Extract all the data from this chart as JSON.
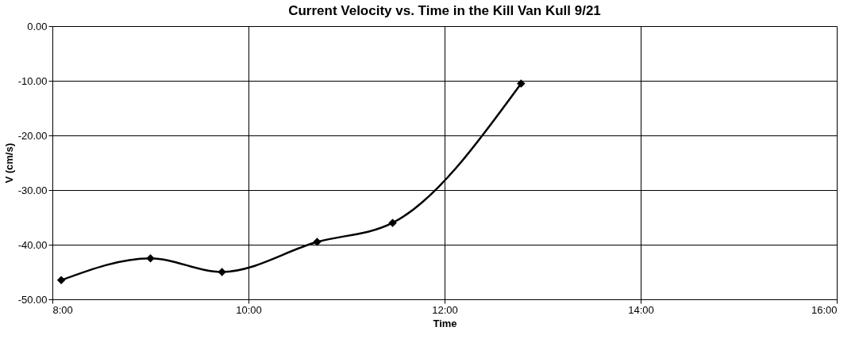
{
  "chart_data": {
    "type": "line",
    "title": "Current Velocity  vs. Time in the Kill Van Kull 9/21",
    "xlabel": "Time",
    "ylabel": "V (cm/s)",
    "x": [
      8.09,
      9.0,
      9.73,
      10.7,
      11.47,
      12.78
    ],
    "series": [
      {
        "color": "#000000",
        "values": [
          -46.5,
          -42.5,
          -45.0,
          -39.5,
          -36.0,
          -10.5
        ]
      }
    ],
    "xlim": [
      8,
      16
    ],
    "xticks": [
      {
        "value": 8,
        "label": "8:00"
      },
      {
        "value": 10,
        "label": "10:00"
      },
      {
        "value": 12,
        "label": "12:00"
      },
      {
        "value": 14,
        "label": "14:00"
      },
      {
        "value": 16,
        "label": "16:00"
      }
    ],
    "ylim": [
      -50,
      0
    ],
    "yticks": [
      {
        "value": -50,
        "label": "-50.00"
      },
      {
        "value": -40,
        "label": "-40.00"
      },
      {
        "value": -30,
        "label": "-30.00"
      },
      {
        "value": -20,
        "label": "-20.00"
      },
      {
        "value": -10,
        "label": "-10.00"
      },
      {
        "value": 0,
        "label": "0.00"
      }
    ],
    "grid": true,
    "marker": "diamond",
    "line_style": "solid"
  }
}
